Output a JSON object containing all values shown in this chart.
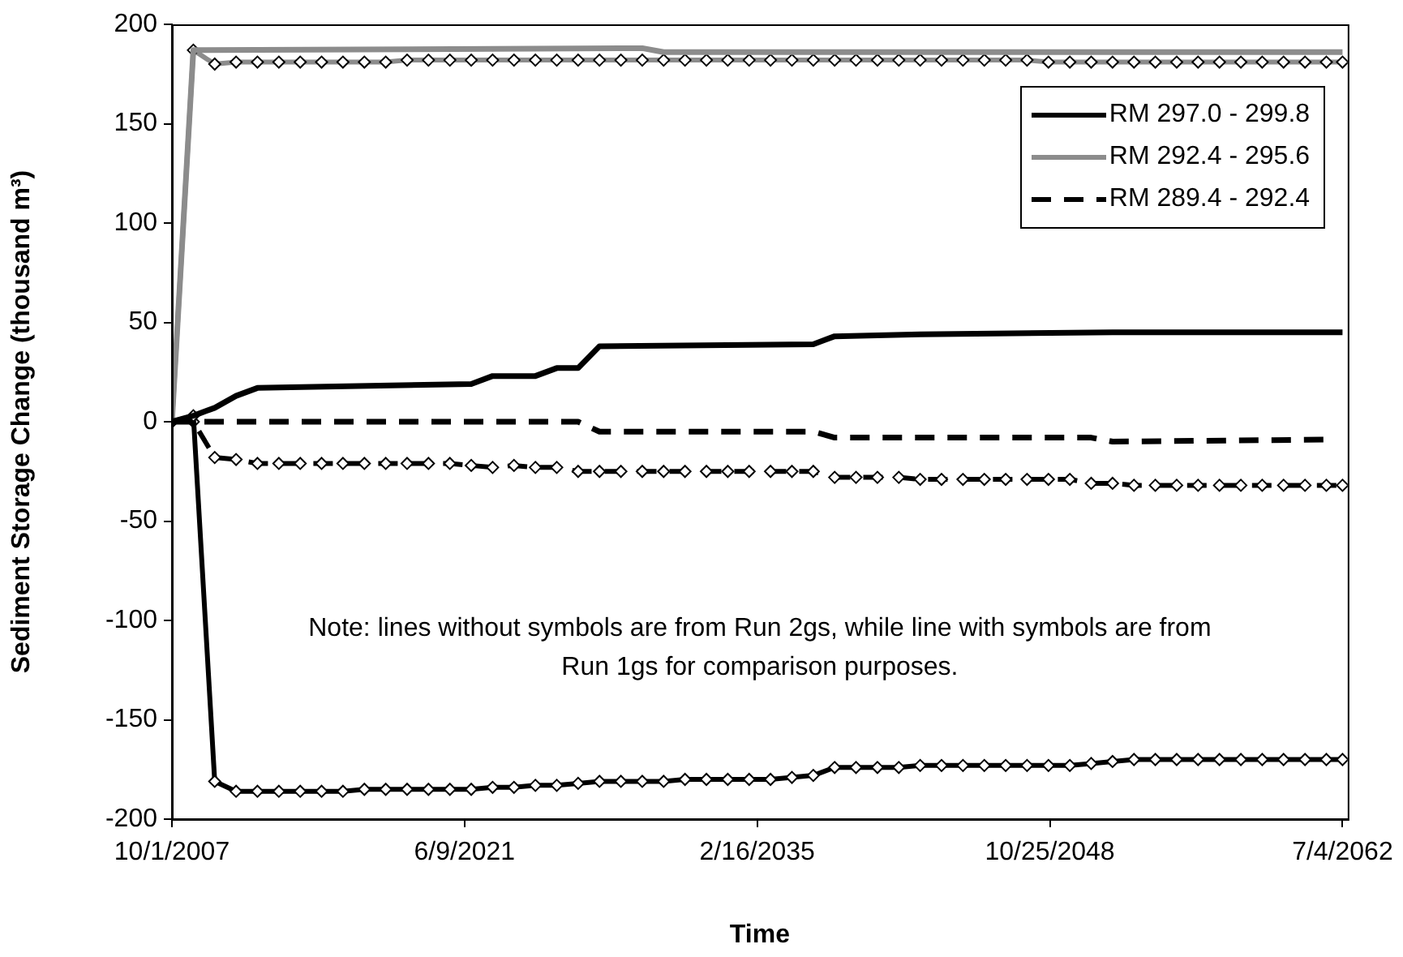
{
  "chart_data": {
    "type": "line",
    "xlabel": "Time",
    "ylabel": "Sediment Storage Change (thousand m³)",
    "xlim": [
      "2007-10-01",
      "2062-10-01"
    ],
    "xticks": [
      {
        "value": "2007-10-01",
        "label": "10/1/2007"
      },
      {
        "value": "2021-06-09",
        "label": "6/9/2021"
      },
      {
        "value": "2035-02-16",
        "label": "2/16/2035"
      },
      {
        "value": "2048-10-25",
        "label": "10/25/2048"
      },
      {
        "value": "2062-07-04",
        "label": "7/4/2062"
      }
    ],
    "ylim": [
      -200,
      200
    ],
    "yticks": [
      -200,
      -150,
      -100,
      -50,
      0,
      50,
      100,
      150,
      200
    ],
    "grid": false,
    "legend": "top right",
    "annotations": [
      "Note: lines without symbols are from Run 2gs, while line with symbols are from Run 1gs for comparison purposes."
    ],
    "series": [
      {
        "name": "RM 297.0 - 299.8",
        "color": "#000000",
        "line_style": "solid",
        "marker": "none",
        "x": [
          "2007-10-01",
          "2008-10-01",
          "2009-10-01",
          "2010-10-01",
          "2011-10-01",
          "2021-10-01",
          "2022-10-01",
          "2024-10-01",
          "2025-10-01",
          "2026-10-01",
          "2027-10-01",
          "2037-10-01",
          "2038-10-01",
          "2042-10-01",
          "2051-10-01",
          "2062-07-04"
        ],
        "values": [
          0,
          3,
          7,
          13,
          17,
          19,
          23,
          23,
          27,
          27,
          38,
          39,
          43,
          44,
          45,
          45
        ]
      },
      {
        "name": "RM 292.4 - 295.6",
        "color": "#8c8c8c",
        "line_style": "solid",
        "marker": "none",
        "x": [
          "2007-10-01",
          "2008-10-01",
          "2029-10-01",
          "2030-10-01",
          "2062-07-04"
        ],
        "values": [
          0,
          187,
          188,
          186,
          186
        ]
      },
      {
        "name": "RM 289.4 - 292.4",
        "color": "#000000",
        "line_style": "dashed",
        "marker": "none",
        "x": [
          "2007-10-01",
          "2026-10-01",
          "2027-10-01",
          "2037-10-01",
          "2038-10-01",
          "2050-10-01",
          "2051-10-01",
          "2061-10-01"
        ],
        "values": [
          0,
          0,
          -5,
          -5,
          -8,
          -8,
          -10,
          -9
        ]
      },
      {
        "color": "#8c8c8c",
        "line_style": "solid",
        "marker": "diamond",
        "values": [
          0,
          187,
          180,
          181,
          181,
          181,
          181,
          181,
          181,
          181,
          181,
          182,
          182,
          182,
          182,
          182,
          182,
          182,
          182,
          182,
          182,
          182,
          182,
          182,
          182,
          182,
          182,
          182,
          182,
          182,
          182,
          182,
          182,
          182,
          182,
          182,
          182,
          182,
          182,
          182,
          182,
          181,
          181,
          181,
          181,
          181,
          181,
          181,
          181,
          181,
          181,
          181,
          181,
          181,
          181,
          181
        ]
      },
      {
        "color": "#000000",
        "line_style": "solid",
        "marker": "diamond",
        "values": [
          0,
          3,
          -181,
          -186,
          -186,
          -186,
          -186,
          -186,
          -186,
          -185,
          -185,
          -185,
          -185,
          -185,
          -185,
          -184,
          -184,
          -183,
          -183,
          -182,
          -181,
          -181,
          -181,
          -181,
          -180,
          -180,
          -180,
          -180,
          -180,
          -179,
          -178,
          -174,
          -174,
          -174,
          -174,
          -173,
          -173,
          -173,
          -173,
          -173,
          -173,
          -173,
          -173,
          -172,
          -171,
          -170,
          -170,
          -170,
          -170,
          -170,
          -170,
          -170,
          -170,
          -170,
          -170,
          -170
        ]
      },
      {
        "color": "#000000",
        "line_style": "dashed",
        "marker": "diamond",
        "values": [
          0,
          0,
          -18,
          -19,
          -21,
          -21,
          -21,
          -21,
          -21,
          -21,
          -21,
          -21,
          -21,
          -21,
          -22,
          -23,
          -22,
          -23,
          -23,
          -25,
          -25,
          -25,
          -25,
          -25,
          -25,
          -25,
          -25,
          -25,
          -25,
          -25,
          -25,
          -28,
          -28,
          -28,
          -28,
          -29,
          -29,
          -29,
          -29,
          -29,
          -29,
          -29,
          -29,
          -31,
          -31,
          -32,
          -32,
          -32,
          -32,
          -32,
          -32,
          -32,
          -32,
          -32,
          -32,
          -32
        ]
      }
    ],
    "x": [
      "2007-10-01",
      "2008-10-01",
      "2009-10-01",
      "2010-10-01",
      "2011-10-01",
      "2012-10-01",
      "2013-10-01",
      "2014-10-01",
      "2015-10-01",
      "2016-10-01",
      "2017-10-01",
      "2018-10-01",
      "2019-10-01",
      "2020-10-01",
      "2021-10-01",
      "2022-10-01",
      "2023-10-01",
      "2024-10-01",
      "2025-10-01",
      "2026-10-01",
      "2027-10-01",
      "2028-10-01",
      "2029-10-01",
      "2030-10-01",
      "2031-10-01",
      "2032-10-01",
      "2033-10-01",
      "2034-10-01",
      "2035-10-01",
      "2036-10-01",
      "2037-10-01",
      "2038-10-01",
      "2039-10-01",
      "2040-10-01",
      "2041-10-01",
      "2042-10-01",
      "2043-10-01",
      "2044-10-01",
      "2045-10-01",
      "2046-10-01",
      "2047-10-01",
      "2048-10-01",
      "2049-10-01",
      "2050-10-01",
      "2051-10-01",
      "2052-10-01",
      "2053-10-01",
      "2054-10-01",
      "2055-10-01",
      "2056-10-01",
      "2057-10-01",
      "2058-10-01",
      "2059-10-01",
      "2060-10-01",
      "2061-10-01",
      "2062-07-04"
    ]
  }
}
